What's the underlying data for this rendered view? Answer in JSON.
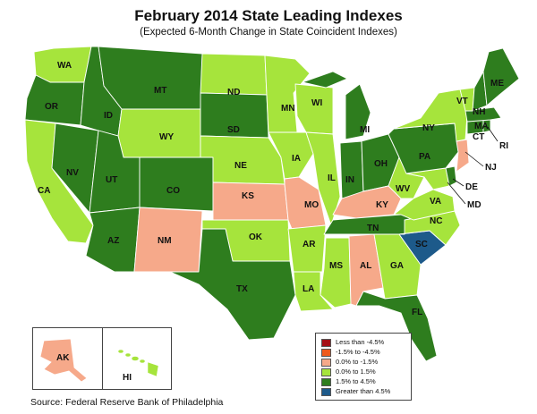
{
  "title": "February 2014 State Leading Indexes",
  "subtitle": "(Expected 6-Month Change in State Coincident Indexes)",
  "source": "Source: Federal Reserve Bank of Philadelphia",
  "colors": {
    "lt_neg45": "#a50f15",
    "neg15_neg45": "#ef5a1c",
    "zero_neg15": "#f6a98a",
    "zero_15": "#a6e43c",
    "p15_45": "#2e7d1e",
    "gt45": "#1d5a8a"
  },
  "legend": [
    {
      "key": "lt_neg45",
      "label": "Less than -4.5%"
    },
    {
      "key": "neg15_neg45",
      "label": "-1.5% to -4.5%"
    },
    {
      "key": "zero_neg15",
      "label": "0.0% to -1.5%"
    },
    {
      "key": "zero_15",
      "label": "0.0% to  1.5%"
    },
    {
      "key": "p15_45",
      "label": "1.5% to  4.5%"
    },
    {
      "key": "gt45",
      "label": "Greater than 4.5%"
    }
  ],
  "states": {
    "WA": "zero_15",
    "OR": "p15_45",
    "CA": "zero_15",
    "NV": "p15_45",
    "ID": "p15_45",
    "MT": "p15_45",
    "WY": "zero_15",
    "UT": "p15_45",
    "AZ": "p15_45",
    "CO": "p15_45",
    "NM": "zero_neg15",
    "ND": "zero_15",
    "SD": "p15_45",
    "NE": "zero_15",
    "KS": "zero_neg15",
    "OK": "zero_15",
    "TX": "p15_45",
    "MN": "zero_15",
    "IA": "zero_15",
    "MO": "zero_neg15",
    "AR": "zero_15",
    "LA": "zero_15",
    "WI": "zero_15",
    "IL": "zero_15",
    "MI": "p15_45",
    "IN": "p15_45",
    "OH": "p15_45",
    "KY": "zero_neg15",
    "TN": "p15_45",
    "MS": "zero_15",
    "AL": "zero_neg15",
    "GA": "zero_15",
    "FL": "p15_45",
    "SC": "gt45",
    "NC": "zero_15",
    "VA": "zero_15",
    "WV": "zero_15",
    "PA": "p15_45",
    "NY": "zero_15",
    "NJ": "zero_neg15",
    "DE": "p15_45",
    "MD": "zero_15",
    "CT": "p15_45",
    "RI": "p15_45",
    "MA": "p15_45",
    "VT": "zero_15",
    "NH": "p15_45",
    "ME": "p15_45",
    "AK": "zero_neg15",
    "HI": "zero_15"
  },
  "labels": {
    "WA": "WA",
    "OR": "OR",
    "CA": "CA",
    "NV": "NV",
    "ID": "ID",
    "MT": "MT",
    "WY": "WY",
    "UT": "UT",
    "AZ": "AZ",
    "CO": "CO",
    "NM": "NM",
    "ND": "ND",
    "SD": "SD",
    "NE": "NE",
    "KS": "KS",
    "OK": "OK",
    "TX": "TX",
    "MN": "MN",
    "IA": "IA",
    "MO": "MO",
    "AR": "AR",
    "LA": "LA",
    "WI": "WI",
    "IL": "IL",
    "MI": "MI",
    "IN": "IN",
    "OH": "OH",
    "KY": "KY",
    "TN": "TN",
    "MS": "MS",
    "AL": "AL",
    "GA": "GA",
    "FL": "FL",
    "SC": "SC",
    "NC": "NC",
    "VA": "VA",
    "WV": "WV",
    "PA": "PA",
    "NY": "NY",
    "NJ": "NJ",
    "DE": "DE",
    "MD": "MD",
    "CT": "CT",
    "RI": "RI",
    "MA": "MA",
    "VT": "VT",
    "NH": "NH",
    "ME": "ME",
    "AK": "AK",
    "HI": "HI"
  }
}
